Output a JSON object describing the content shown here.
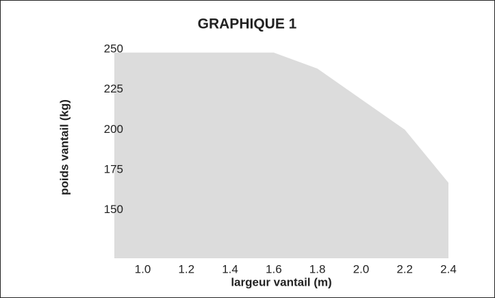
{
  "chart_data": {
    "type": "area",
    "title": "GRAPHIQUE 1",
    "x_label": "largeur vantail (m)",
    "y_label": "poids vantail (kg)",
    "x": [
      0.87,
      1.6,
      1.8,
      2.0,
      2.2,
      2.4
    ],
    "values": [
      248,
      248,
      238,
      219,
      200,
      167
    ],
    "color": "#dcdcdc",
    "xlim": [
      0.87,
      2.4
    ],
    "xticks": [
      {
        "value": 1.0,
        "label": "1.0"
      },
      1.2,
      1.4,
      1.6,
      1.8,
      {
        "value": 2.0,
        "label": "2.0"
      },
      2.2,
      2.4
    ],
    "ylim": [
      120,
      250
    ],
    "yticks": [
      150,
      175,
      200,
      225,
      250
    ],
    "grid": false
  }
}
